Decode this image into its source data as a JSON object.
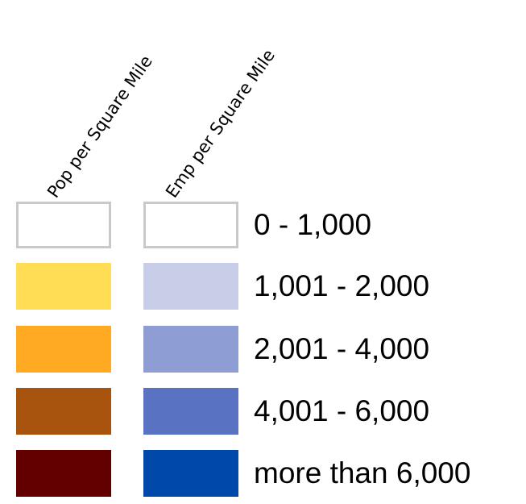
{
  "legend": {
    "headers": {
      "pop": "Pop per Square Mile",
      "emp": "Emp per Square Mile"
    },
    "classes": [
      {
        "label": "0 - 1,000",
        "pop_color": "#ffffff",
        "emp_color": "#ffffff",
        "outlined": true
      },
      {
        "label": "1,001 - 2,000",
        "pop_color": "#ffdd55",
        "emp_color": "#c8cde8",
        "outlined": false
      },
      {
        "label": "2,001 - 4,000",
        "pop_color": "#ffaa22",
        "emp_color": "#8f9dd5",
        "outlined": false
      },
      {
        "label": "4,001 - 6,000",
        "pop_color": "#a8540e",
        "emp_color": "#5a72c2",
        "outlined": false
      },
      {
        "label": "more than 6,000",
        "pop_color": "#620000",
        "emp_color": "#0048aa",
        "outlined": false
      }
    ],
    "outline_color": "#c9c9c9"
  }
}
